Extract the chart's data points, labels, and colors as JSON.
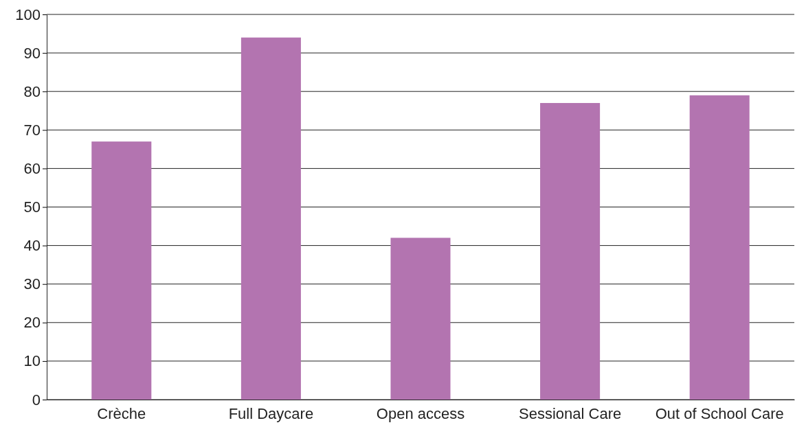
{
  "chart_data": {
    "type": "bar",
    "categories": [
      "Crèche",
      "Full Daycare",
      "Open access",
      "Sessional Care",
      "Out of School Care"
    ],
    "values": [
      67,
      94,
      42,
      77,
      79
    ],
    "color": "#b374b0",
    "ylim": [
      0,
      100
    ],
    "yticks": [
      0,
      10,
      20,
      30,
      40,
      50,
      60,
      70,
      80,
      90,
      100
    ],
    "grid": "y"
  }
}
